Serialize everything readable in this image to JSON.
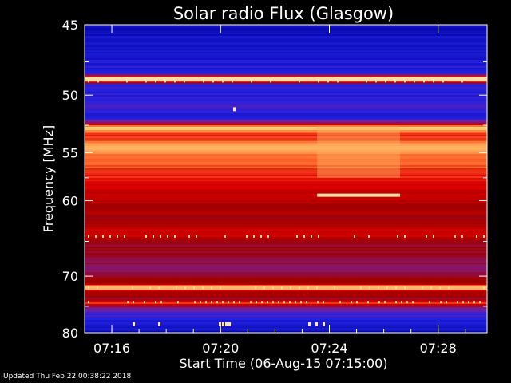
{
  "chart_data": {
    "type": "heatmap",
    "title": "Solar radio Flux (Glasgow)",
    "xlabel": "Start Time (06-Aug-15 07:15:00)",
    "ylabel": "Frequency [MHz]",
    "x_ticks": [
      "07:16",
      "07:20",
      "07:24",
      "07:28"
    ],
    "x_tick_minutes": [
      1,
      5,
      9,
      13
    ],
    "xlim_minutes": [
      0,
      14.8
    ],
    "y_ticks": [
      45,
      50,
      55,
      60,
      70,
      80
    ],
    "ylim": [
      45,
      80
    ],
    "y_scale": "reciprocal",
    "colormap": [
      "#0000a0",
      "#2020e0",
      "#7a1fa0",
      "#a00000",
      "#e00000",
      "#ff7030",
      "#ffe080",
      "#ffffff"
    ],
    "grid": false,
    "legend": "none"
  },
  "footer": "Updated Thu Feb 22 00:38:22 2018"
}
